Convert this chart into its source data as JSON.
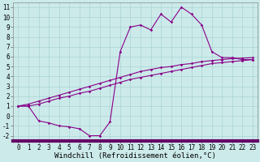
{
  "xlabel": "Windchill (Refroidissement éolien,°C)",
  "background_color": "#cceaea",
  "line_color": "#880088",
  "grid_color": "#aad4d4",
  "xlim": [
    -0.5,
    23.5
  ],
  "ylim": [
    -2.5,
    11.5
  ],
  "xticks": [
    0,
    1,
    2,
    3,
    4,
    5,
    6,
    7,
    8,
    9,
    10,
    11,
    12,
    13,
    14,
    15,
    16,
    17,
    18,
    19,
    20,
    21,
    22,
    23
  ],
  "yticks": [
    -2,
    -1,
    0,
    1,
    2,
    3,
    4,
    5,
    6,
    7,
    8,
    9,
    10,
    11
  ],
  "curve1_x": [
    0,
    1,
    2,
    3,
    4,
    5,
    6,
    7,
    8,
    9,
    10,
    11,
    12,
    13,
    14,
    15,
    16,
    17,
    18,
    19,
    20,
    21,
    22,
    23
  ],
  "curve1_y": [
    1.0,
    1.0,
    -0.5,
    -0.7,
    -1.0,
    -1.1,
    -1.3,
    -2.0,
    -2.0,
    -0.6,
    6.5,
    9.0,
    9.2,
    8.7,
    10.3,
    9.5,
    11.0,
    10.3,
    9.2,
    6.5,
    5.9,
    5.9,
    5.7,
    5.7
  ],
  "curve2_x": [
    0,
    1,
    2,
    3,
    4,
    5,
    6,
    7,
    8,
    9,
    10,
    11,
    12,
    13,
    14,
    15,
    16,
    17,
    18,
    19,
    20,
    21,
    22,
    23
  ],
  "curve2_y": [
    1.0,
    1.2,
    1.5,
    1.8,
    2.1,
    2.4,
    2.7,
    3.0,
    3.3,
    3.6,
    3.9,
    4.2,
    4.5,
    4.7,
    4.9,
    5.0,
    5.2,
    5.3,
    5.5,
    5.6,
    5.7,
    5.8,
    5.85,
    5.9
  ],
  "curve3_x": [
    0,
    1,
    2,
    3,
    4,
    5,
    6,
    7,
    8,
    9,
    10,
    11,
    12,
    13,
    14,
    15,
    16,
    17,
    18,
    19,
    20,
    21,
    22,
    23
  ],
  "curve3_y": [
    1.0,
    1.0,
    1.2,
    1.5,
    1.8,
    2.0,
    2.3,
    2.5,
    2.8,
    3.1,
    3.4,
    3.7,
    3.9,
    4.1,
    4.3,
    4.5,
    4.7,
    4.9,
    5.1,
    5.3,
    5.4,
    5.5,
    5.6,
    5.7
  ],
  "marker": "D",
  "markersize": 1.8,
  "linewidth": 0.8,
  "tick_fontsize": 5.5,
  "xlabel_fontsize": 6.5
}
